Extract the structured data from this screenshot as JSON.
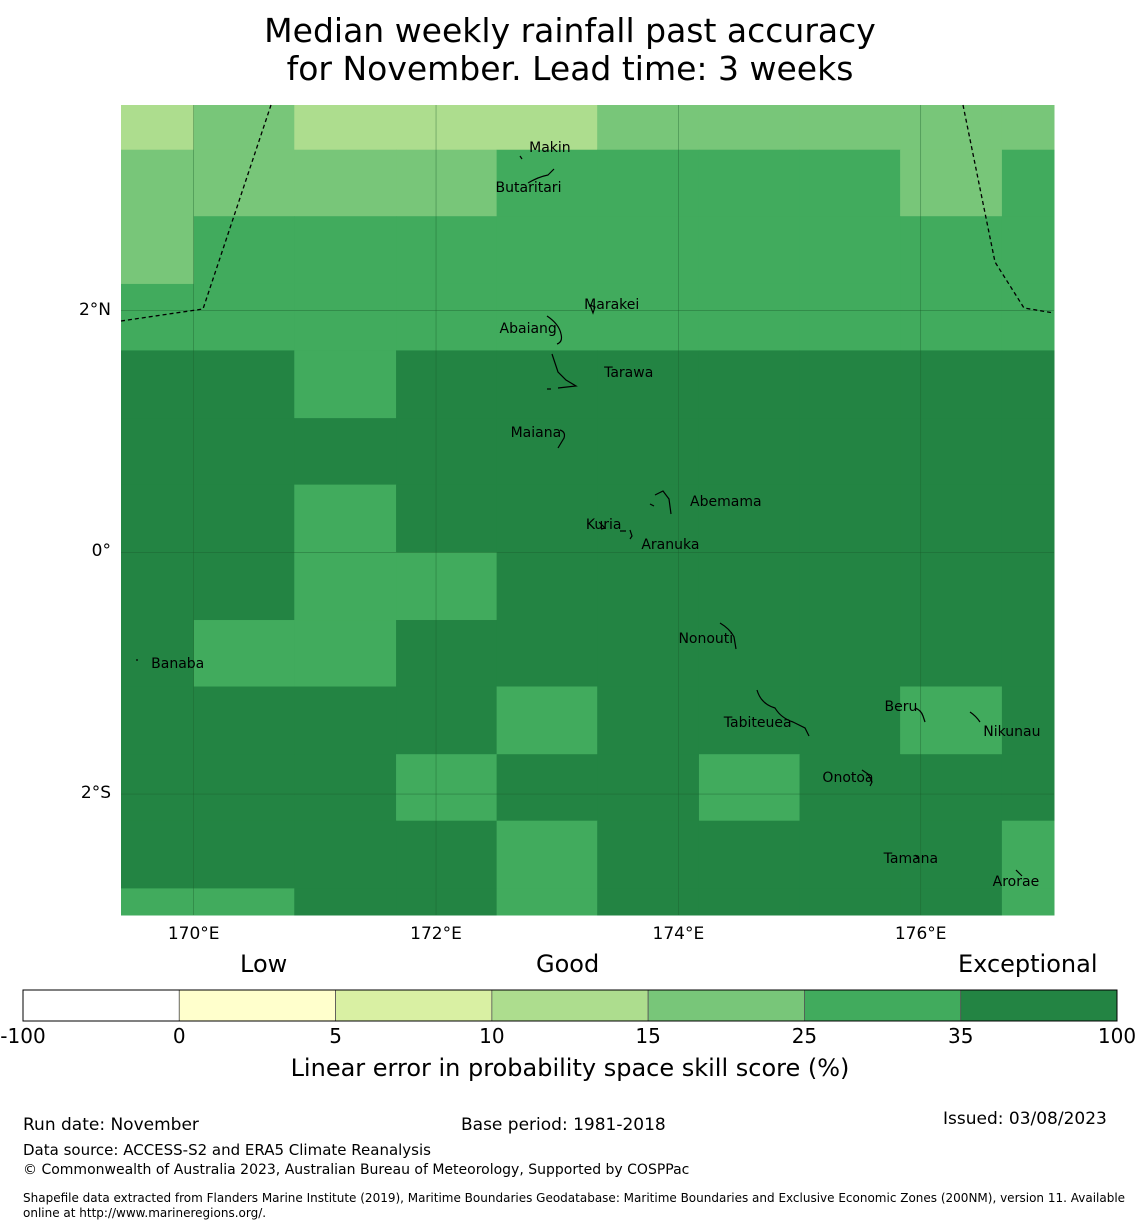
{
  "title": {
    "line1": "Median weekly rainfall past accuracy",
    "line2": "for November. Lead time: 3 weeks"
  },
  "map": {
    "lon_range": [
      169.4,
      177.1
    ],
    "lat_range": [
      -3.0,
      3.7
    ],
    "lat_ticks": [
      {
        "value": 2,
        "label": "2°N"
      },
      {
        "value": 0,
        "label": "0°"
      },
      {
        "value": -2,
        "label": "2°S"
      }
    ],
    "lon_ticks": [
      {
        "value": 170,
        "label": "170°E"
      },
      {
        "value": 172,
        "label": "172°E"
      },
      {
        "value": 174,
        "label": "174°E"
      },
      {
        "value": 176,
        "label": "176°E"
      }
    ],
    "grid_lon_edges": [
      169.4,
      170.0,
      170.83,
      171.67,
      172.5,
      173.33,
      174.17,
      175.0,
      175.83,
      176.67,
      177.1
    ],
    "grid_lat_edges": [
      3.7,
      3.33,
      2.78,
      2.22,
      1.67,
      1.11,
      0.56,
      0.0,
      -0.56,
      -1.11,
      -1.67,
      -2.22,
      -2.78,
      -3.0
    ],
    "grid_classes": [
      [
        3,
        4,
        3,
        3,
        3,
        4,
        4,
        4,
        4,
        4
      ],
      [
        4,
        4,
        4,
        4,
        5,
        5,
        5,
        5,
        4,
        5
      ],
      [
        4,
        5,
        5,
        5,
        5,
        5,
        5,
        5,
        5,
        5
      ],
      [
        5,
        5,
        5,
        5,
        5,
        5,
        5,
        5,
        5,
        5
      ],
      [
        6,
        6,
        5,
        6,
        6,
        6,
        6,
        6,
        6,
        6
      ],
      [
        6,
        6,
        6,
        6,
        6,
        6,
        6,
        6,
        6,
        6
      ],
      [
        6,
        6,
        5,
        6,
        6,
        6,
        6,
        6,
        6,
        6
      ],
      [
        6,
        6,
        5,
        5,
        6,
        6,
        6,
        6,
        6,
        6
      ],
      [
        6,
        5,
        5,
        6,
        6,
        6,
        6,
        6,
        6,
        6
      ],
      [
        6,
        6,
        6,
        6,
        5,
        6,
        6,
        6,
        5,
        6
      ],
      [
        6,
        6,
        6,
        5,
        6,
        6,
        5,
        6,
        6,
        6
      ],
      [
        6,
        6,
        6,
        6,
        5,
        6,
        6,
        6,
        6,
        5
      ],
      [
        5,
        5,
        6,
        6,
        5,
        6,
        6,
        6,
        6,
        5
      ]
    ],
    "places": [
      {
        "name": "Makin",
        "lon": 172.95,
        "lat": 3.33
      },
      {
        "name": "Butaritari",
        "lon": 172.78,
        "lat": 3.0
      },
      {
        "name": "Marakei",
        "lon": 173.47,
        "lat": 2.03
      },
      {
        "name": "Abaiang",
        "lon": 172.78,
        "lat": 1.83
      },
      {
        "name": "Tarawa",
        "lon": 173.61,
        "lat": 1.47
      },
      {
        "name": "Maiana",
        "lon": 172.83,
        "lat": 0.97
      },
      {
        "name": "Abemama",
        "lon": 174.41,
        "lat": 0.4
      },
      {
        "name": "Kuria",
        "lon": 173.41,
        "lat": 0.21
      },
      {
        "name": "Aranuka",
        "lon": 173.95,
        "lat": 0.04
      },
      {
        "name": "Nonouti",
        "lon": 174.24,
        "lat": -0.73
      },
      {
        "name": "Banaba",
        "lon": 169.88,
        "lat": -0.94
      },
      {
        "name": "Tabiteuea",
        "lon": 174.68,
        "lat": -1.43
      },
      {
        "name": "Beru",
        "lon": 175.85,
        "lat": -1.3
      },
      {
        "name": "Nikunau",
        "lon": 176.78,
        "lat": -1.5
      },
      {
        "name": "Onotoa",
        "lon": 175.42,
        "lat": -1.88
      },
      {
        "name": "Tamana",
        "lon": 175.95,
        "lat": -2.55
      },
      {
        "name": "Arorae",
        "lon": 176.8,
        "lat": -2.74
      }
    ]
  },
  "legend": {
    "categories": [
      "Low",
      "Good",
      "Exceptional"
    ],
    "bins": [
      {
        "from": -100,
        "to": 0,
        "color": "#ffffff"
      },
      {
        "from": 0,
        "to": 5,
        "color": "#ffffcc"
      },
      {
        "from": 5,
        "to": 10,
        "color": "#d9f0a3"
      },
      {
        "from": 10,
        "to": 15,
        "color": "#addd8e"
      },
      {
        "from": 15,
        "to": 25,
        "color": "#78c679"
      },
      {
        "from": 25,
        "to": 35,
        "color": "#41ab5d"
      },
      {
        "from": 35,
        "to": 100,
        "color": "#238443"
      }
    ],
    "tick_labels": [
      "-100",
      "0",
      "5",
      "10",
      "15",
      "25",
      "35",
      "100"
    ],
    "label": "Linear error in probability space skill score (%)"
  },
  "footer": {
    "run_date": "Run date: November",
    "base_period": "Base period: 1981-2018",
    "issued": "Issued: 03/08/2023",
    "data_source": "Data source: ACCESS-S2 and ERA5 Climate Reanalysis",
    "copyright": "© Commonwealth of Australia 2023, Australian Bureau of Meteorology, Supported by COSPPac",
    "shapefile_line1": "Shapefile data extracted from Flanders Marine Institute (2019), Maritime Boundaries Geodatabase: Maritime Boundaries and Exclusive Economic Zones (200NM), version 11. Available",
    "shapefile_line2": "online at http://www.marineregions.org/."
  }
}
